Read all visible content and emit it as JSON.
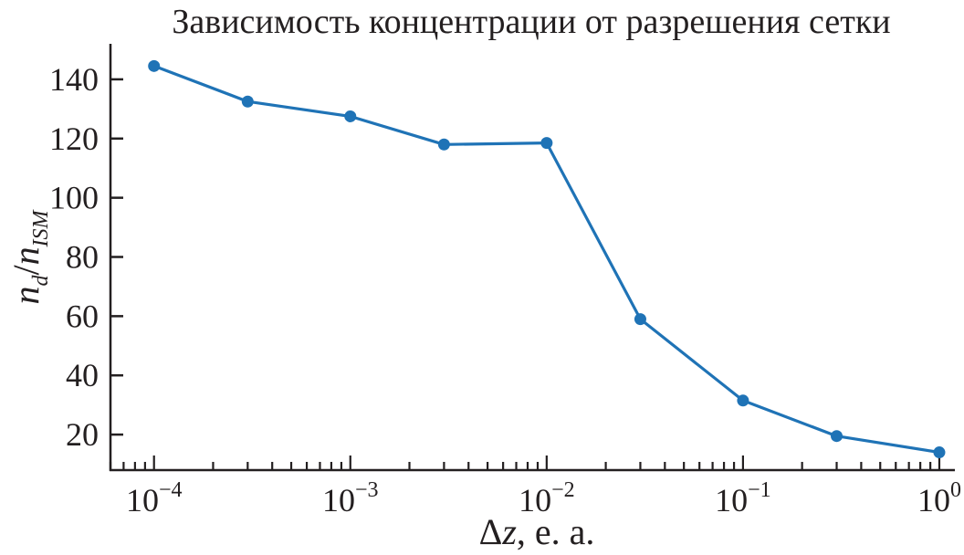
{
  "chart_data": {
    "type": "line",
    "title": "Зависимость концентрации от разрешения сетки",
    "xlabel": {
      "delta": "Δ",
      "var": "z",
      "rest": ", е. а."
    },
    "ylabel": {
      "n1": "n",
      "sub1": "d",
      "slash": "/",
      "n2": "n",
      "sub2": "ISM"
    },
    "x_scale": "log",
    "xlim": [
      6e-05,
      1.2
    ],
    "ylim": [
      8,
      152
    ],
    "x_ticks": [
      {
        "base": "10",
        "exp": "−4"
      },
      {
        "base": "10",
        "exp": "−3"
      },
      {
        "base": "10",
        "exp": "−2"
      },
      {
        "base": "10",
        "exp": "−1"
      },
      {
        "base": "10",
        "exp": "0"
      }
    ],
    "y_ticks": [
      "20",
      "40",
      "60",
      "80",
      "100",
      "120",
      "140"
    ],
    "series_color": "#1f73b6",
    "series": [
      {
        "x": [
          0.0001,
          0.0003,
          0.001,
          0.003,
          0.01,
          0.03,
          0.1,
          0.3,
          1
        ],
        "y": [
          144.5,
          132.5,
          127.5,
          118,
          118.5,
          59,
          31.5,
          19.5,
          14
        ]
      }
    ]
  }
}
